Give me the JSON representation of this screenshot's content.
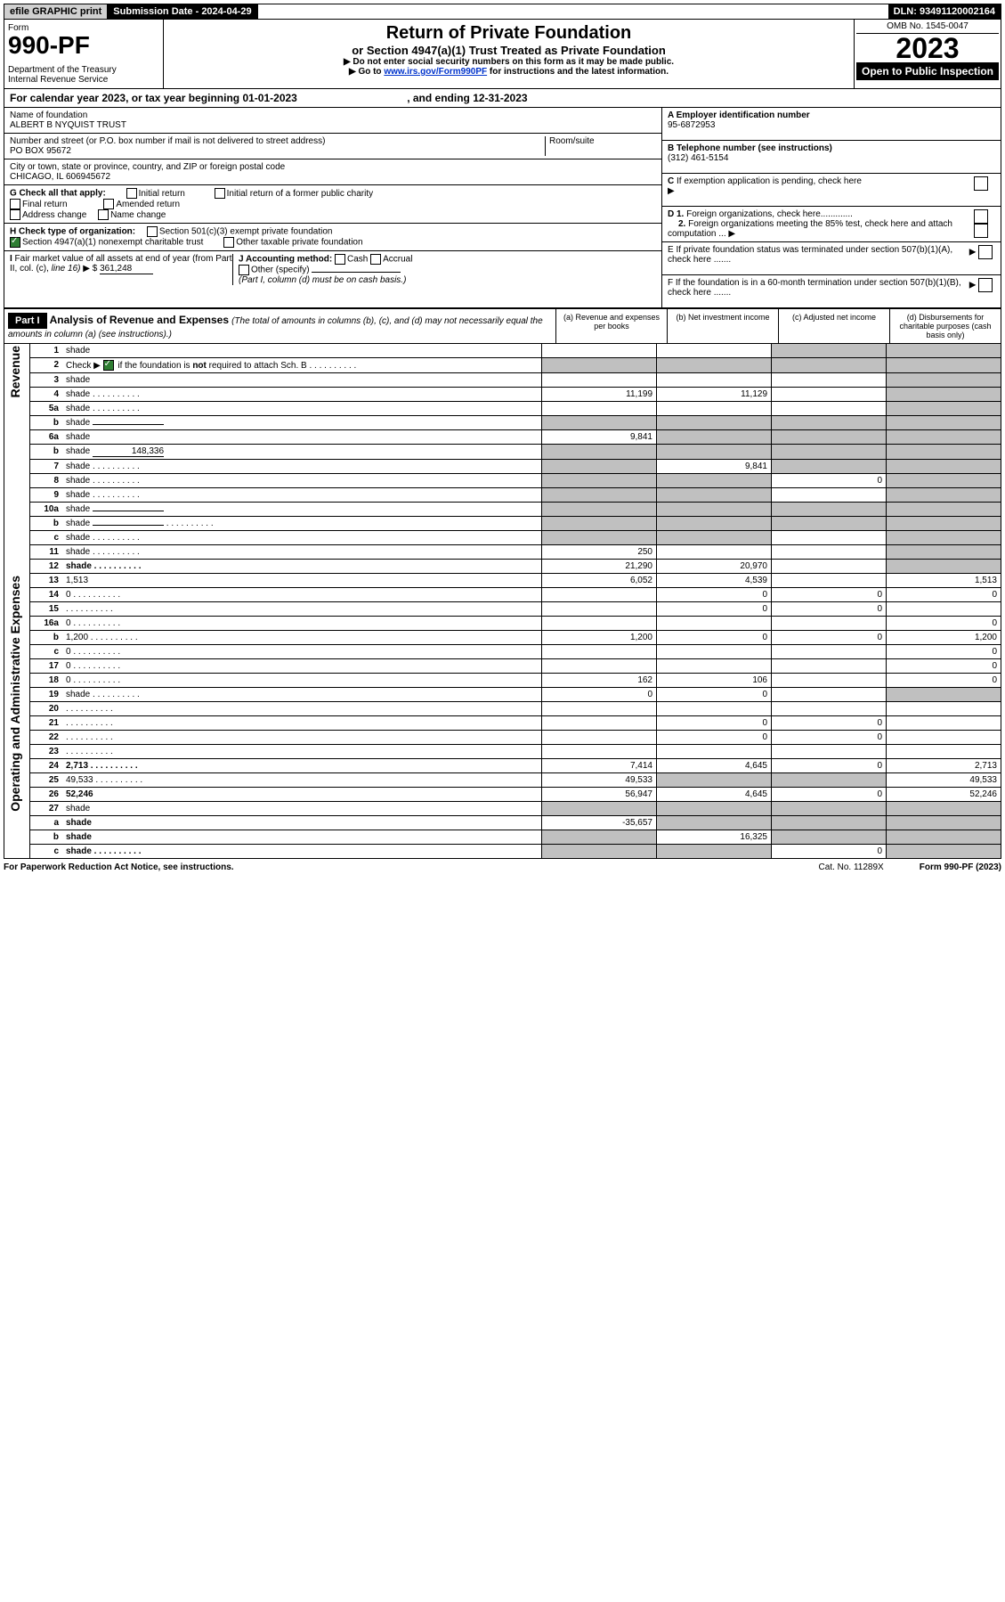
{
  "topbar": {
    "efile": "efile GRAPHIC print",
    "submission": "Submission Date - 2024-04-29",
    "dln": "DLN: 93491120002164"
  },
  "header": {
    "form_label": "Form",
    "form_number": "990-PF",
    "dept": "Department of the Treasury\nInternal Revenue Service",
    "title": "Return of Private Foundation",
    "subtitle": "or Section 4947(a)(1) Trust Treated as Private Foundation",
    "note1": "▶ Do not enter social security numbers on this form as it may be made public.",
    "note2_pre": "▶ Go to ",
    "note2_link": "www.irs.gov/Form990PF",
    "note2_post": " for instructions and the latest information.",
    "omb": "OMB No. 1545-0047",
    "year": "2023",
    "open": "Open to Public Inspection"
  },
  "calyear": {
    "text_pre": "For calendar year 2023, or tax year beginning ",
    "begin": "01-01-2023",
    "mid": " , and ending ",
    "end": "12-31-2023"
  },
  "foundation": {
    "name_label": "Name of foundation",
    "name": "ALBERT B NYQUIST TRUST",
    "addr_label": "Number and street (or P.O. box number if mail is not delivered to street address)",
    "addr": "PO BOX 95672",
    "room_label": "Room/suite",
    "city_label": "City or town, state or province, country, and ZIP or foreign postal code",
    "city": "CHICAGO, IL  606945672",
    "a_label": "A Employer identification number",
    "a_value": "95-6872953",
    "b_label": "B Telephone number (see instructions)",
    "b_value": "(312) 461-5154",
    "c_label": "C If exemption application is pending, check here",
    "d1": "D 1. Foreign organizations, check here.............",
    "d2": "2. Foreign organizations meeting the 85% test, check here and attach computation ...",
    "e": "E  If private foundation status was terminated under section 507(b)(1)(A), check here .......",
    "f": "F  If the foundation is in a 60-month termination under section 507(b)(1)(B), check here .......",
    "g_label": "G Check all that apply:",
    "g_opts": [
      "Initial return",
      "Final return",
      "Address change",
      "Initial return of a former public charity",
      "Amended return",
      "Name change"
    ],
    "h_label": "H Check type of organization:",
    "h_opts": [
      "Section 501(c)(3) exempt private foundation",
      "Section 4947(a)(1) nonexempt charitable trust",
      "Other taxable private foundation"
    ],
    "i_label_pre": "I Fair market value of all assets at end of year (from Part II, col. (c), line 16) ▶ $ ",
    "i_value": "361,248",
    "j_label": "J Accounting method:",
    "j_opts": [
      "Cash",
      "Accrual",
      "Other (specify)"
    ],
    "j_note": "(Part I, column (d) must be on cash basis.)"
  },
  "part1": {
    "label": "Part I",
    "title": "Analysis of Revenue and Expenses",
    "title_note": " (The total of amounts in columns (b), (c), and (d) may not necessarily equal the amounts in column (a) (see instructions).)",
    "cols": {
      "a": "(a)  Revenue and expenses per books",
      "b": "(b)  Net investment income",
      "c": "(c)  Adjusted net income",
      "d": "(d)  Disbursements for charitable purposes (cash basis only)"
    }
  },
  "side_labels": {
    "revenue": "Revenue",
    "expenses": "Operating and Administrative Expenses"
  },
  "lines": [
    {
      "n": "1",
      "d": "shade",
      "a": "",
      "b": "",
      "c": "shade"
    },
    {
      "n": "2",
      "d": "shade",
      "dots": true,
      "a": "shade",
      "b": "shade",
      "c": "shade",
      "check": true
    },
    {
      "n": "3",
      "d": "shade",
      "a": "",
      "b": "",
      "c": ""
    },
    {
      "n": "4",
      "d": "shade",
      "dots": true,
      "a": "11,199",
      "b": "11,129",
      "c": ""
    },
    {
      "n": "5a",
      "d": "shade",
      "dots": true,
      "a": "",
      "b": "",
      "c": ""
    },
    {
      "n": "b",
      "d": "shade",
      "inline": true,
      "a": "shade",
      "b": "shade",
      "c": "shade"
    },
    {
      "n": "6a",
      "d": "shade",
      "a": "9,841",
      "b": "shade",
      "c": "shade"
    },
    {
      "n": "b",
      "d": "shade",
      "inline_val": "148,336",
      "a": "shade",
      "b": "shade",
      "c": "shade"
    },
    {
      "n": "7",
      "d": "shade",
      "dots": true,
      "a": "shade",
      "b": "9,841",
      "c": "shade"
    },
    {
      "n": "8",
      "d": "shade",
      "dots": true,
      "a": "shade",
      "b": "shade",
      "c": "0"
    },
    {
      "n": "9",
      "d": "shade",
      "dots": true,
      "a": "shade",
      "b": "shade",
      "c": ""
    },
    {
      "n": "10a",
      "d": "shade",
      "inline": true,
      "a": "shade",
      "b": "shade",
      "c": "shade"
    },
    {
      "n": "b",
      "d": "shade",
      "dots": true,
      "inline": true,
      "a": "shade",
      "b": "shade",
      "c": "shade"
    },
    {
      "n": "c",
      "d": "shade",
      "dots": true,
      "a": "shade",
      "b": "shade",
      "c": ""
    },
    {
      "n": "11",
      "d": "shade",
      "dots": true,
      "a": "250",
      "b": "",
      "c": ""
    },
    {
      "n": "12",
      "d": "shade",
      "dots": true,
      "bold": true,
      "a": "21,290",
      "b": "20,970",
      "c": ""
    },
    {
      "n": "13",
      "d": "1,513",
      "a": "6,052",
      "b": "4,539",
      "c": "",
      "section": "exp"
    },
    {
      "n": "14",
      "d": "0",
      "dots": true,
      "a": "",
      "b": "0",
      "c": "0"
    },
    {
      "n": "15",
      "d": "",
      "dots": true,
      "a": "",
      "b": "0",
      "c": "0"
    },
    {
      "n": "16a",
      "d": "0",
      "dots": true,
      "a": "",
      "b": "",
      "c": ""
    },
    {
      "n": "b",
      "d": "1,200",
      "dots": true,
      "a": "1,200",
      "b": "0",
      "c": "0"
    },
    {
      "n": "c",
      "d": "0",
      "dots": true,
      "a": "",
      "b": "",
      "c": ""
    },
    {
      "n": "17",
      "d": "0",
      "dots": true,
      "a": "",
      "b": "",
      "c": ""
    },
    {
      "n": "18",
      "d": "0",
      "dots": true,
      "a": "162",
      "b": "106",
      "c": ""
    },
    {
      "n": "19",
      "d": "shade",
      "dots": true,
      "a": "0",
      "b": "0",
      "c": ""
    },
    {
      "n": "20",
      "d": "",
      "dots": true,
      "a": "",
      "b": "",
      "c": ""
    },
    {
      "n": "21",
      "d": "",
      "dots": true,
      "a": "",
      "b": "0",
      "c": "0"
    },
    {
      "n": "22",
      "d": "",
      "dots": true,
      "a": "",
      "b": "0",
      "c": "0"
    },
    {
      "n": "23",
      "d": "",
      "dots": true,
      "a": "",
      "b": "",
      "c": ""
    },
    {
      "n": "24",
      "d": "2,713",
      "dots": true,
      "bold": true,
      "a": "7,414",
      "b": "4,645",
      "c": "0"
    },
    {
      "n": "25",
      "d": "49,533",
      "dots": true,
      "a": "49,533",
      "b": "shade",
      "c": "shade"
    },
    {
      "n": "26",
      "d": "52,246",
      "bold": true,
      "a": "56,947",
      "b": "4,645",
      "c": "0"
    },
    {
      "n": "27",
      "d": "shade",
      "a": "shade",
      "b": "shade",
      "c": "shade"
    },
    {
      "n": "a",
      "d": "shade",
      "bold": true,
      "a": "-35,657",
      "b": "shade",
      "c": "shade"
    },
    {
      "n": "b",
      "d": "shade",
      "bold": true,
      "a": "shade",
      "b": "16,325",
      "c": "shade"
    },
    {
      "n": "c",
      "d": "shade",
      "dots": true,
      "bold": true,
      "a": "shade",
      "b": "shade",
      "c": "0"
    }
  ],
  "footer": {
    "left": "For Paperwork Reduction Act Notice, see instructions.",
    "mid": "Cat. No. 11289X",
    "right": "Form 990-PF (2023)"
  }
}
